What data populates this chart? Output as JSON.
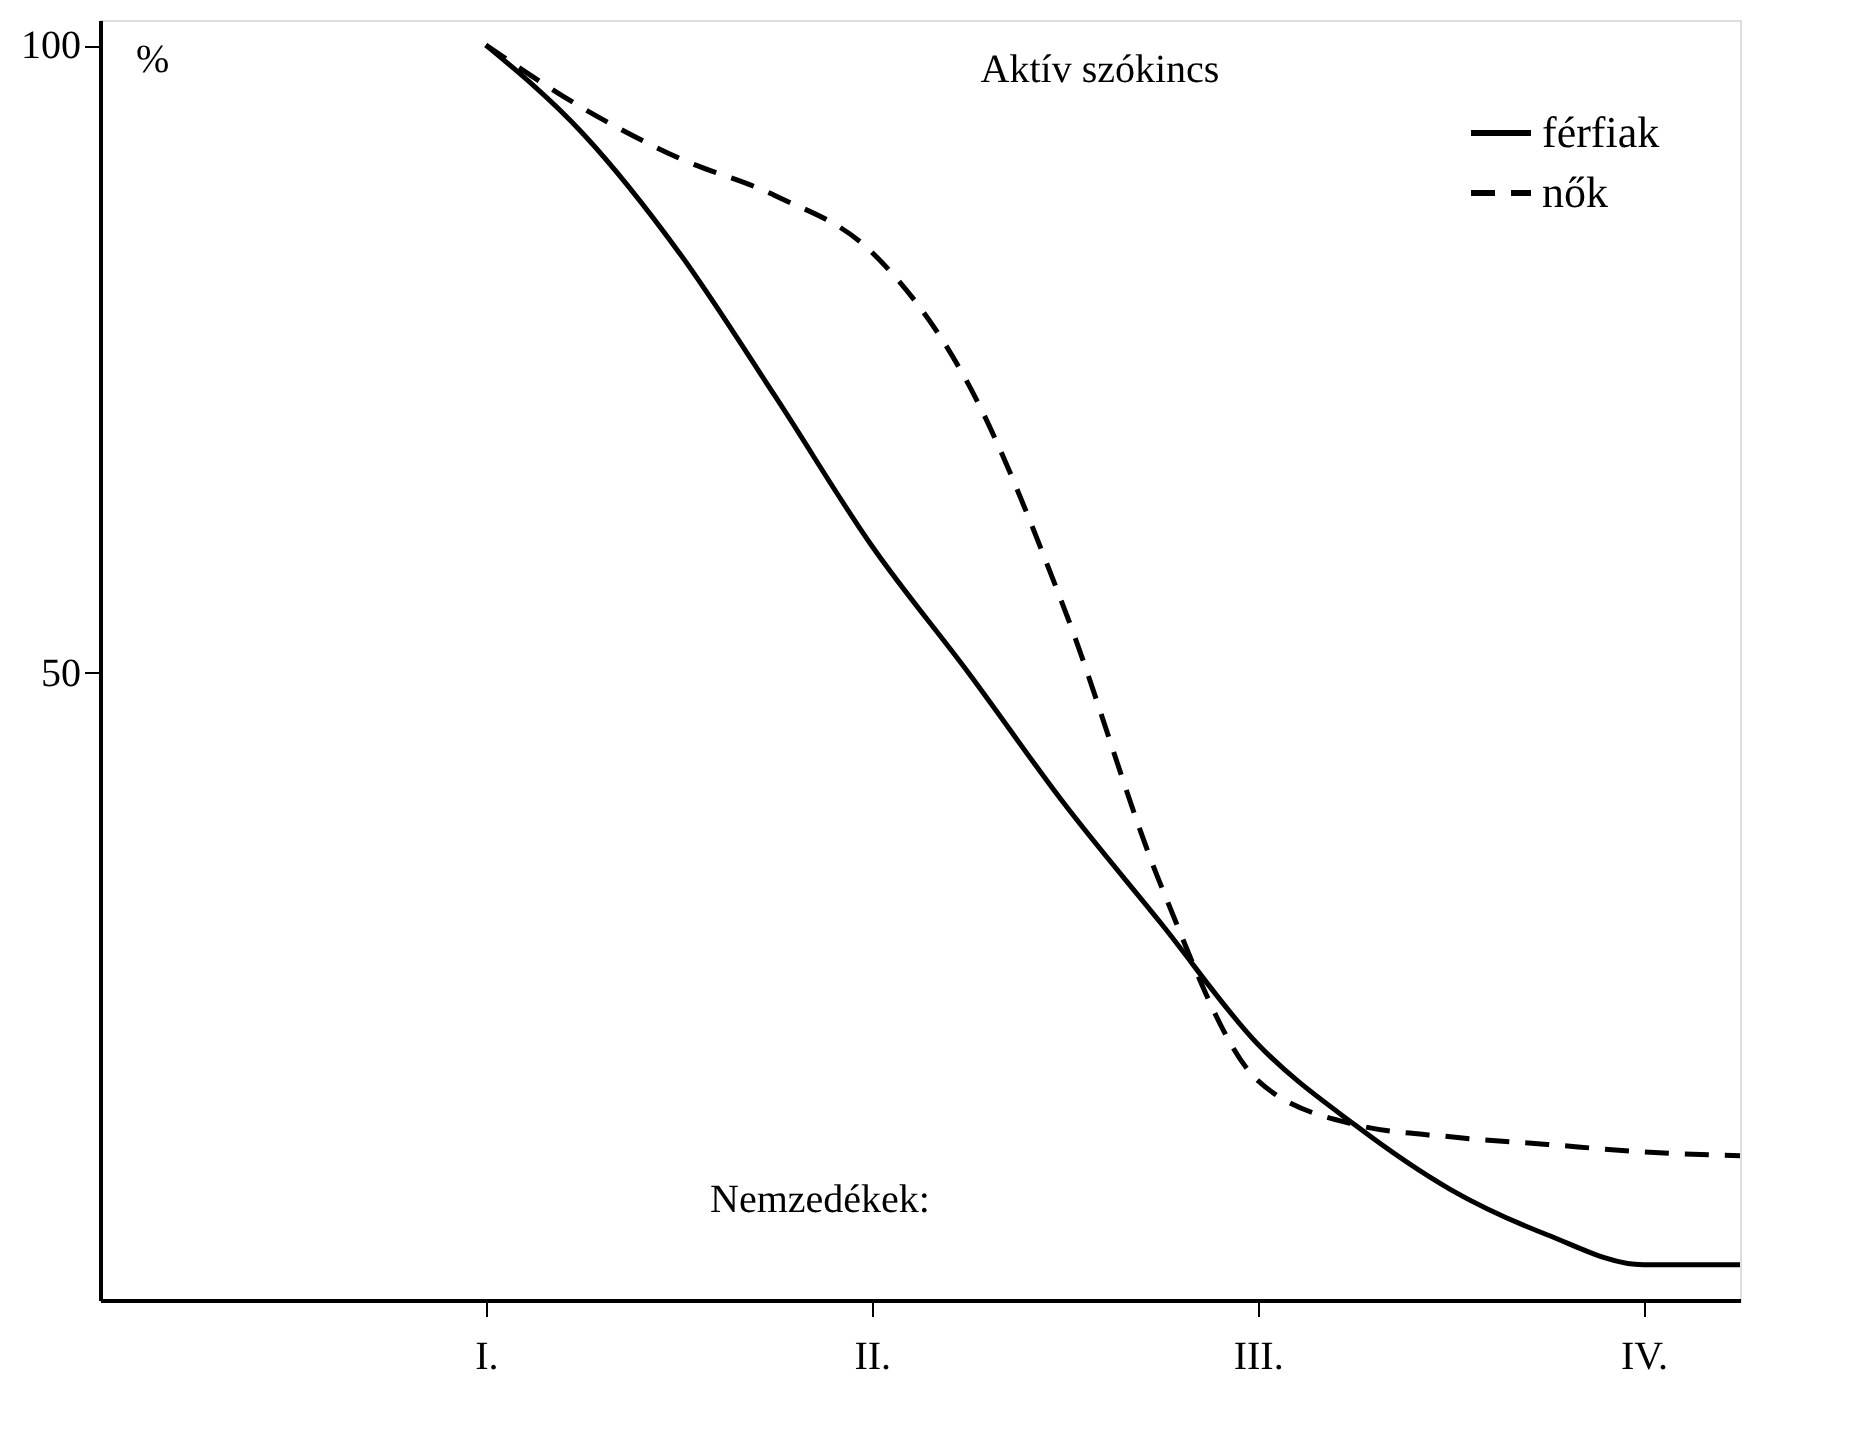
{
  "chart_data": {
    "type": "line",
    "title": "Aktív szókincs",
    "xlabel": "Nemzedékek:",
    "ylabel": "%",
    "categories": [
      null,
      null,
      null,
      null,
      "I.",
      null,
      null,
      null,
      "II.",
      null,
      null,
      null,
      "III.",
      null,
      null,
      null,
      "IV.",
      null
    ],
    "ylim": [
      0,
      102
    ],
    "yticks": [
      50,
      100
    ],
    "grid": false,
    "legend": "top right",
    "marker": "none",
    "series": [
      {
        "name": "férfiak",
        "color": "#000000",
        "line_style": "solid",
        "values": [
          null,
          null,
          null,
          null,
          100,
          93,
          83.5,
          72,
          60.1,
          50,
          39.5,
          30,
          20.4,
          14,
          8.8,
          5.2,
          2.8,
          2.8
        ]
      },
      {
        "name": "nők",
        "color": "#000000",
        "line_style": "dashed",
        "values": [
          null,
          null,
          null,
          null,
          100,
          95,
          91,
          88,
          83.5,
          73,
          55,
          33,
          17.5,
          14,
          13,
          12.4,
          11.8,
          11.5
        ]
      }
    ]
  }
}
